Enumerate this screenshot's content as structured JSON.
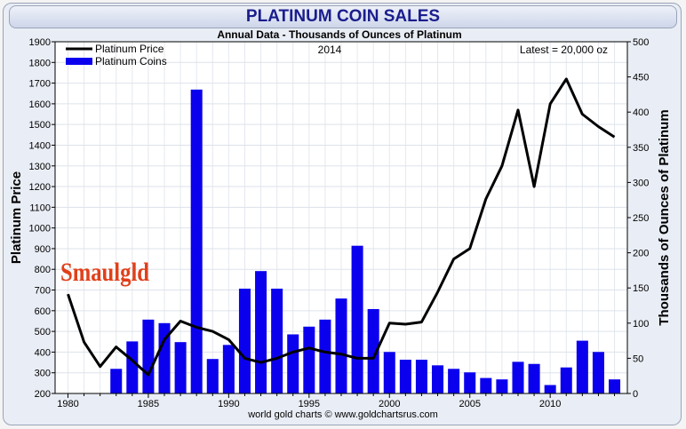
{
  "chart_data": {
    "type": "bar+line",
    "title": "PLATINUM COIN SALES",
    "subtitle": "Annual Data - Thousands of Ounces of Platinum",
    "year_label": "2014",
    "latest_label": "Latest = 20,000 oz",
    "credit": "world gold charts © www.goldchartsrus.com",
    "watermark": "Smaulgld",
    "ylabel_left": "Platinum Price",
    "ylabel_right": "Thousands of Ounces of Platinum",
    "ylim_left": [
      200,
      1900
    ],
    "ylim_right": [
      0,
      500
    ],
    "yticks_left": [
      200,
      300,
      400,
      500,
      600,
      700,
      800,
      900,
      1000,
      1100,
      1200,
      1300,
      1400,
      1500,
      1600,
      1700,
      1800,
      1900
    ],
    "yticks_right": [
      0,
      50,
      100,
      150,
      200,
      250,
      300,
      350,
      400,
      450,
      500
    ],
    "xlim": [
      1979.2,
      2014.8
    ],
    "xticks": [
      1980,
      1985,
      1990,
      1995,
      2000,
      2005,
      2010
    ],
    "legend": {
      "position": "top-left",
      "entries": [
        "Platinum Price",
        "Platinum Coins"
      ]
    },
    "colors": {
      "price": "#000000",
      "coins": "#0b00ee",
      "title": "#1a1d8c",
      "watermark": "#e0401a"
    },
    "coins": {
      "name": "Platinum Coins",
      "years": [
        1983,
        1984,
        1985,
        1986,
        1987,
        1988,
        1989,
        1990,
        1991,
        1992,
        1993,
        1994,
        1995,
        1996,
        1997,
        1998,
        1999,
        2000,
        2001,
        2002,
        2003,
        2004,
        2005,
        2006,
        2007,
        2008,
        2009,
        2010,
        2011,
        2012,
        2013,
        2014
      ],
      "values": [
        35,
        74,
        105,
        100,
        73,
        432,
        49,
        69,
        149,
        174,
        149,
        84,
        95,
        105,
        135,
        210,
        120,
        59,
        48,
        48,
        40,
        35,
        30,
        22,
        20,
        45,
        42,
        12,
        37,
        75,
        59,
        20
      ]
    },
    "price": {
      "name": "Platinum Price",
      "years": [
        1980,
        1981,
        1982,
        1983,
        1984,
        1985,
        1986,
        1987,
        1988,
        1989,
        1990,
        1991,
        1992,
        1993,
        1994,
        1995,
        1996,
        1997,
        1998,
        1999,
        2000,
        2001,
        2002,
        2003,
        2004,
        2005,
        2006,
        2007,
        2008,
        2009,
        2010,
        2011,
        2012,
        2013,
        2014
      ],
      "values": [
        680,
        448,
        330,
        425,
        360,
        290,
        460,
        550,
        520,
        500,
        460,
        370,
        350,
        370,
        400,
        420,
        400,
        390,
        370,
        370,
        540,
        535,
        545,
        690,
        850,
        900,
        1140,
        1300,
        1570,
        1200,
        1600,
        1720,
        1550,
        1490,
        1440
      ]
    }
  }
}
